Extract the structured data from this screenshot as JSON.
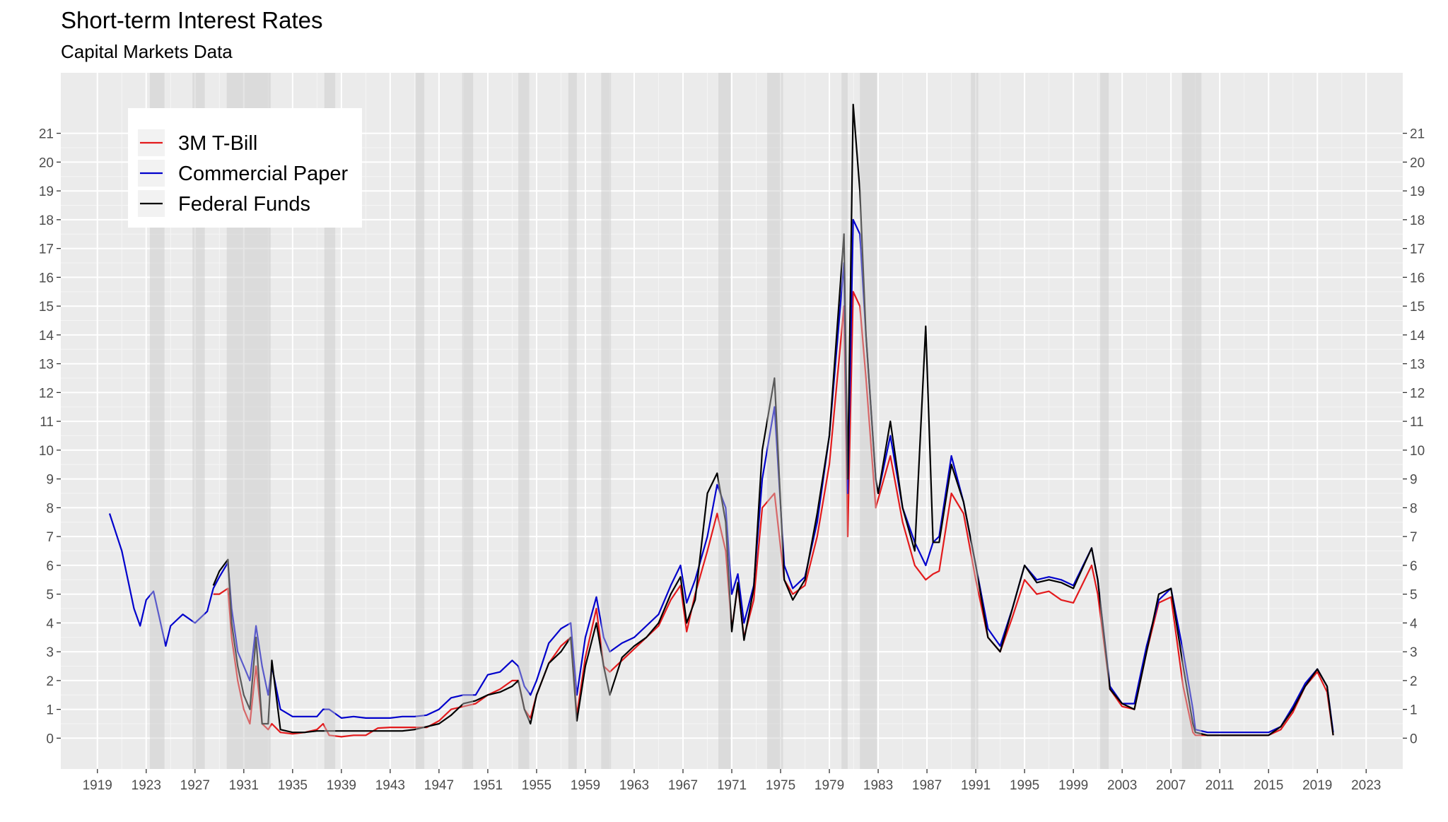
{
  "chart_data": {
    "type": "line",
    "title": "Short-term Interest Rates",
    "subtitle": "Capital Markets Data",
    "x": [
      1920.0,
      1921.0,
      1922.0,
      1922.5,
      1923.0,
      1923.6,
      1924.6,
      1925.0,
      1926.0,
      1927.0,
      1928.0,
      1928.5,
      1929.0,
      1929.7,
      1930.0,
      1930.5,
      1931.0,
      1931.5,
      1932.0,
      1932.5,
      1933.0,
      1933.3,
      1934.0,
      1935.0,
      1936.0,
      1937.0,
      1937.5,
      1938.0,
      1939.0,
      1940.0,
      1941.0,
      1942.0,
      1943.0,
      1944.0,
      1945.0,
      1946.0,
      1947.0,
      1948.0,
      1949.0,
      1950.0,
      1951.0,
      1952.0,
      1953.0,
      1953.5,
      1954.0,
      1954.5,
      1955.0,
      1956.0,
      1957.0,
      1957.8,
      1958.3,
      1959.0,
      1959.9,
      1960.5,
      1961.0,
      1962.0,
      1963.0,
      1964.0,
      1965.0,
      1966.0,
      1966.8,
      1967.3,
      1968.0,
      1969.0,
      1969.8,
      1970.5,
      1971.0,
      1971.5,
      1972.0,
      1972.8,
      1973.5,
      1974.5,
      1975.3,
      1976.0,
      1977.0,
      1978.0,
      1979.0,
      1980.2,
      1980.5,
      1980.95,
      1981.5,
      1982.0,
      1982.8,
      1983.0,
      1984.0,
      1985.0,
      1986.0,
      1986.9,
      1987.5,
      1988.0,
      1989.0,
      1990.0,
      1991.0,
      1992.0,
      1993.0,
      1994.0,
      1995.0,
      1996.0,
      1997.0,
      1998.0,
      1999.0,
      2000.5,
      2001.0,
      2002.0,
      2003.0,
      2004.0,
      2005.0,
      2006.0,
      2007.0,
      2008.0,
      2008.8,
      2009.0,
      2010.0,
      2011.0,
      2012.0,
      2013.0,
      2014.0,
      2015.0,
      2016.0,
      2017.0,
      2018.0,
      2019.0,
      2019.8,
      2020.3
    ],
    "series": [
      {
        "name": "3M T-Bill",
        "color": "#e31a1c",
        "values": [
          null,
          null,
          null,
          null,
          null,
          null,
          null,
          null,
          null,
          null,
          null,
          5.0,
          5.0,
          5.2,
          3.5,
          2.0,
          1.0,
          0.5,
          2.5,
          0.5,
          0.3,
          0.5,
          0.2,
          0.15,
          0.2,
          0.3,
          0.5,
          0.1,
          0.05,
          0.1,
          0.1,
          0.35,
          0.375,
          0.375,
          0.375,
          0.375,
          0.6,
          1.0,
          1.1,
          1.2,
          1.5,
          1.7,
          2.0,
          2.0,
          1.0,
          0.7,
          1.5,
          2.6,
          3.2,
          3.5,
          0.8,
          2.8,
          4.5,
          2.5,
          2.3,
          2.7,
          3.1,
          3.5,
          3.9,
          4.8,
          5.3,
          3.7,
          5.0,
          6.5,
          7.8,
          6.5,
          3.8,
          5.3,
          3.5,
          4.8,
          8.0,
          8.5,
          5.5,
          5.0,
          5.3,
          7.0,
          9.5,
          15.0,
          7.0,
          15.5,
          15.0,
          12.5,
          8.0,
          8.3,
          9.8,
          7.5,
          6.0,
          5.5,
          5.7,
          5.8,
          8.5,
          7.8,
          5.5,
          3.5,
          3.0,
          4.2,
          5.5,
          5.0,
          5.1,
          4.8,
          4.7,
          6.0,
          5.0,
          1.7,
          1.1,
          1.0,
          3.0,
          4.7,
          4.9,
          1.8,
          0.2,
          0.1,
          0.1,
          0.1,
          0.1,
          0.1,
          0.1,
          0.1,
          0.3,
          0.9,
          1.8,
          2.3,
          1.6,
          0.1
        ]
      },
      {
        "name": "Commercial Paper",
        "color": "#0000cc",
        "values": [
          7.8,
          6.5,
          4.5,
          3.9,
          4.8,
          5.1,
          3.2,
          3.9,
          4.3,
          4.0,
          4.4,
          5.2,
          5.6,
          6.1,
          4.5,
          3.0,
          2.5,
          2.0,
          3.9,
          2.5,
          1.5,
          2.5,
          1.0,
          0.75,
          0.75,
          0.75,
          1.0,
          1.0,
          0.7,
          0.75,
          0.7,
          0.7,
          0.7,
          0.75,
          0.75,
          0.8,
          1.0,
          1.4,
          1.5,
          1.5,
          2.2,
          2.3,
          2.7,
          2.5,
          1.8,
          1.5,
          2.0,
          3.3,
          3.8,
          4.0,
          1.5,
          3.5,
          4.9,
          3.5,
          3.0,
          3.3,
          3.5,
          3.9,
          4.3,
          5.3,
          6.0,
          4.7,
          5.5,
          7.0,
          8.8,
          8.0,
          5.0,
          5.7,
          4.0,
          5.3,
          9.0,
          11.5,
          6.0,
          5.2,
          5.6,
          7.5,
          10.5,
          16.5,
          8.5,
          18.0,
          17.5,
          14.0,
          9.0,
          8.5,
          10.5,
          8.0,
          6.8,
          6.0,
          6.8,
          7.0,
          9.8,
          8.2,
          6.0,
          3.8,
          3.2,
          4.5,
          6.0,
          5.5,
          5.6,
          5.5,
          5.3,
          6.6,
          5.5,
          1.8,
          1.2,
          1.2,
          3.2,
          4.8,
          5.2,
          3.0,
          1.0,
          0.3,
          0.2,
          0.2,
          0.2,
          0.2,
          0.2,
          0.2,
          0.4,
          1.1,
          1.9,
          2.4,
          1.8,
          0.2
        ]
      },
      {
        "name": "Federal Funds",
        "color": "#000000",
        "values": [
          null,
          null,
          null,
          null,
          null,
          null,
          null,
          null,
          null,
          null,
          null,
          5.3,
          5.8,
          6.2,
          4.0,
          2.5,
          1.5,
          1.0,
          3.5,
          0.5,
          0.5,
          2.7,
          0.3,
          0.2,
          0.2,
          0.25,
          0.25,
          0.25,
          0.25,
          0.25,
          0.25,
          0.25,
          0.25,
          0.25,
          0.3,
          0.4,
          0.5,
          0.8,
          1.2,
          1.3,
          1.5,
          1.6,
          1.8,
          2.0,
          1.0,
          0.5,
          1.5,
          2.6,
          3.0,
          3.5,
          0.6,
          2.5,
          4.0,
          2.5,
          1.5,
          2.8,
          3.2,
          3.5,
          4.0,
          5.0,
          5.6,
          4.0,
          4.8,
          8.5,
          9.2,
          7.5,
          3.7,
          5.4,
          3.4,
          5.2,
          10.0,
          12.5,
          5.5,
          4.8,
          5.5,
          7.8,
          10.5,
          17.5,
          9.0,
          22.0,
          19.0,
          14.0,
          9.0,
          8.5,
          11.0,
          8.0,
          6.5,
          14.3,
          6.8,
          6.8,
          9.5,
          8.2,
          6.0,
          3.5,
          3.0,
          4.5,
          6.0,
          5.4,
          5.5,
          5.4,
          5.2,
          6.6,
          5.5,
          1.7,
          1.2,
          1.0,
          3.0,
          5.0,
          5.2,
          2.5,
          0.5,
          0.2,
          0.1,
          0.1,
          0.1,
          0.1,
          0.1,
          0.1,
          0.4,
          1.0,
          1.8,
          2.4,
          1.8,
          0.1
        ]
      }
    ],
    "recessions": [
      [
        1923.3,
        1924.5
      ],
      [
        1926.8,
        1927.8
      ],
      [
        1929.6,
        1933.2
      ],
      [
        1937.6,
        1938.5
      ],
      [
        1945.1,
        1945.8
      ],
      [
        1948.9,
        1949.8
      ],
      [
        1953.5,
        1954.4
      ],
      [
        1957.6,
        1958.3
      ],
      [
        1960.3,
        1961.1
      ],
      [
        1969.9,
        1970.9
      ],
      [
        1973.9,
        1975.2
      ],
      [
        1980.0,
        1980.5
      ],
      [
        1981.5,
        1982.9
      ],
      [
        1990.6,
        1991.2
      ],
      [
        2001.2,
        2001.9
      ],
      [
        2007.9,
        2009.5
      ]
    ],
    "xlim": [
      1916,
      2026
    ],
    "ylim": [
      -1.07,
      23.1
    ],
    "xticks": [
      1919,
      1923,
      1927,
      1931,
      1935,
      1939,
      1943,
      1947,
      1951,
      1955,
      1959,
      1963,
      1967,
      1971,
      1975,
      1979,
      1983,
      1987,
      1991,
      1995,
      1999,
      2003,
      2007,
      2011,
      2015,
      2019,
      2023
    ],
    "yticks": [
      0,
      1,
      2,
      3,
      4,
      5,
      6,
      7,
      8,
      9,
      10,
      11,
      12,
      13,
      14,
      15,
      16,
      17,
      18,
      19,
      20,
      21
    ],
    "grid": true,
    "legend": "top-left"
  }
}
